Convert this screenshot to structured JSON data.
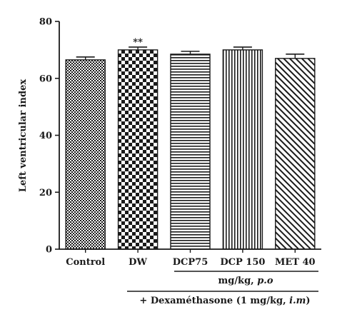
{
  "chart_data": {
    "type": "bar",
    "categories": [
      "Control",
      "DW",
      "DCP75",
      "DCP 150",
      "MET 40"
    ],
    "values": [
      66.5,
      70.0,
      68.5,
      70.0,
      67.0
    ],
    "errors": [
      1.0,
      1.0,
      1.0,
      1.0,
      1.5
    ],
    "patterns": [
      "crosshatch-fine",
      "checkerboard",
      "horizontal-lines",
      "vertical-lines",
      "diagonal-lines"
    ],
    "significance": [
      "",
      "**",
      "",
      "",
      ""
    ],
    "ylabel": "Left ventricular index",
    "xlabel": "",
    "ylim": [
      0,
      80
    ],
    "yticks": [
      0,
      20,
      40,
      60,
      80
    ],
    "group_labels": {
      "dose_route": "mg/kg, p.o",
      "treatment": "+ Dexaméthasone (1 mg/kg, i.m)"
    },
    "grid": false,
    "legend": "none",
    "colors": {
      "ink": "#1a1a1a",
      "background": "#ffffff"
    }
  }
}
